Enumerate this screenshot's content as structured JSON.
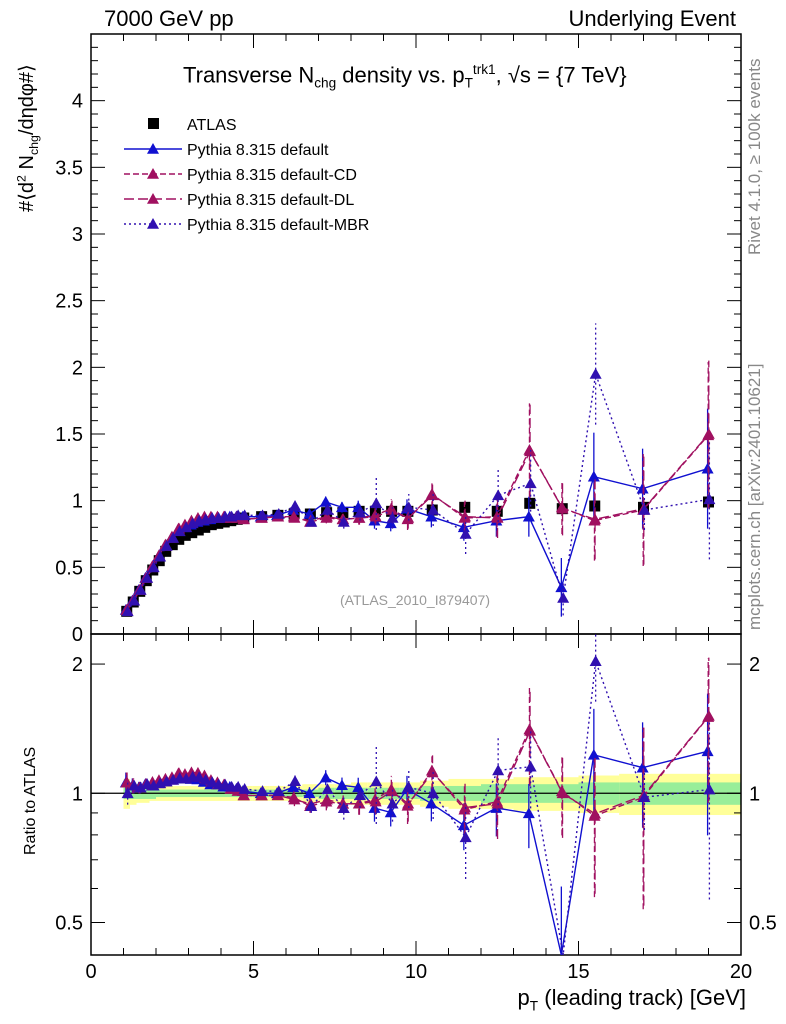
{
  "header": {
    "left": "7000 GeV pp",
    "right": "Underlying Event"
  },
  "side_labels": {
    "rivet": "Rivet 4.1.0, ≥ 100k events",
    "mcplots": "mcplots.cern.ch [arXiv:2401.10621]"
  },
  "title": {
    "part1": "Transverse N",
    "sub1": "chg",
    "part2": " density vs. p",
    "sub2": "T",
    "sup2": "trk1",
    "part3": ", √s = {7 TeV}"
  },
  "ylabel_main": {
    "part1": "#⟨d",
    "sup1": "2",
    "part2": " N",
    "sub2": "chg",
    "part3": "/dηdφ#⟩"
  },
  "ylabel_ratio": "Ratio to ATLAS",
  "xlabel": {
    "part1": "p",
    "sub1": "T",
    "part2": " (leading track) [GeV]"
  },
  "watermark": "(ATLAS_2010_I879407)",
  "chart_data": {
    "type": "scatter",
    "main": {
      "xlim": [
        0,
        20
      ],
      "ylim": [
        0,
        4.5
      ],
      "yticks": [
        0,
        0.5,
        1,
        1.5,
        2,
        2.5,
        3,
        3.5,
        4
      ],
      "ytick_labels": [
        "0",
        "0.5",
        "1",
        "1.5",
        "2",
        "2.5",
        "3",
        "3.5",
        "4"
      ]
    },
    "ratio": {
      "ylim": [
        0.42,
        2.35
      ],
      "yticks": [
        0.5,
        1,
        2
      ],
      "ytick_labels": [
        "0.5",
        "1",
        "2"
      ]
    },
    "xticks": [
      0,
      5,
      10,
      15,
      20
    ],
    "xtick_labels": [
      "0",
      "5",
      "10",
      "15",
      "20"
    ],
    "x": [
      1.1,
      1.3,
      1.5,
      1.7,
      1.9,
      2.1,
      2.3,
      2.5,
      2.7,
      2.9,
      3.1,
      3.3,
      3.5,
      3.7,
      3.9,
      4.1,
      4.3,
      4.5,
      4.7,
      5.25,
      5.75,
      6.25,
      6.75,
      7.25,
      7.75,
      8.25,
      8.75,
      9.25,
      9.75,
      10.5,
      11.5,
      12.5,
      13.5,
      14.5,
      15.5,
      17,
      19
    ],
    "ref": {
      "name": "ATLAS",
      "color": "#000000",
      "values": [
        0.17,
        0.24,
        0.32,
        0.4,
        0.48,
        0.55,
        0.62,
        0.67,
        0.71,
        0.74,
        0.76,
        0.78,
        0.8,
        0.82,
        0.83,
        0.84,
        0.85,
        0.86,
        0.87,
        0.88,
        0.89,
        0.9,
        0.9,
        0.91,
        0.91,
        0.92,
        0.92,
        0.92,
        0.92,
        0.93,
        0.95,
        0.92,
        0.98,
        0.94,
        0.96,
        0.95,
        0.99
      ],
      "band_inner": [
        0.97,
        0.97,
        0.97,
        0.97,
        0.97,
        0.98,
        0.98,
        0.98,
        0.98,
        0.98,
        0.98,
        0.98,
        0.98,
        0.98,
        0.98,
        0.98,
        0.98,
        0.98,
        0.98,
        0.98,
        0.98,
        0.98,
        0.98,
        0.97,
        0.97,
        0.97,
        0.97,
        0.97,
        0.97,
        0.96,
        0.96,
        0.95,
        0.95,
        0.95,
        0.94,
        0.94,
        0.94
      ],
      "band_outer": [
        0.92,
        0.94,
        0.95,
        0.95,
        0.96,
        0.96,
        0.96,
        0.96,
        0.96,
        0.96,
        0.96,
        0.96,
        0.96,
        0.96,
        0.96,
        0.96,
        0.96,
        0.96,
        0.96,
        0.96,
        0.96,
        0.96,
        0.95,
        0.95,
        0.95,
        0.94,
        0.94,
        0.94,
        0.94,
        0.93,
        0.92,
        0.92,
        0.91,
        0.91,
        0.9,
        0.89,
        0.89
      ]
    },
    "series": [
      {
        "name": "Pythia 8.315 default",
        "color": "#1010d0",
        "dash": "",
        "values": [
          0.18,
          0.25,
          0.33,
          0.42,
          0.5,
          0.58,
          0.66,
          0.72,
          0.78,
          0.8,
          0.82,
          0.84,
          0.85,
          0.86,
          0.87,
          0.87,
          0.88,
          0.88,
          0.88,
          0.88,
          0.89,
          0.93,
          0.9,
          0.99,
          0.95,
          0.95,
          0.85,
          0.83,
          0.94,
          0.88,
          0.8,
          0.85,
          0.88,
          0.35,
          1.18,
          1.09,
          1.24
        ],
        "errors": [
          0.01,
          0.01,
          0.01,
          0.01,
          0.01,
          0.01,
          0.01,
          0.01,
          0.01,
          0.01,
          0.01,
          0.01,
          0.01,
          0.01,
          0.01,
          0.01,
          0.01,
          0.01,
          0.01,
          0.02,
          0.02,
          0.03,
          0.03,
          0.04,
          0.04,
          0.05,
          0.06,
          0.06,
          0.07,
          0.08,
          0.1,
          0.12,
          0.15,
          0.22,
          0.33,
          0.3,
          0.45
        ]
      },
      {
        "name": "Pythia 8.315 default-CD",
        "color": "#a01060",
        "dash": "6,3",
        "values": [
          0.18,
          0.25,
          0.33,
          0.42,
          0.51,
          0.59,
          0.67,
          0.73,
          0.79,
          0.82,
          0.85,
          0.87,
          0.88,
          0.88,
          0.88,
          0.88,
          0.87,
          0.88,
          0.86,
          0.87,
          0.88,
          0.88,
          0.84,
          0.87,
          0.86,
          0.87,
          0.89,
          0.94,
          0.86,
          1.05,
          0.87,
          0.88,
          1.38,
          0.95,
          0.85,
          0.93,
          1.49
        ],
        "errors": [
          0.01,
          0.01,
          0.01,
          0.01,
          0.01,
          0.01,
          0.01,
          0.01,
          0.01,
          0.01,
          0.01,
          0.01,
          0.01,
          0.01,
          0.01,
          0.01,
          0.01,
          0.01,
          0.01,
          0.02,
          0.02,
          0.03,
          0.03,
          0.04,
          0.04,
          0.05,
          0.06,
          0.07,
          0.08,
          0.1,
          0.12,
          0.15,
          0.35,
          0.2,
          0.3,
          0.42,
          0.55
        ]
      },
      {
        "name": "Pythia 8.315 default-DL",
        "color": "#a01060",
        "dash": "10,4",
        "values": [
          0.18,
          0.25,
          0.33,
          0.42,
          0.5,
          0.58,
          0.66,
          0.72,
          0.79,
          0.81,
          0.84,
          0.86,
          0.87,
          0.87,
          0.87,
          0.88,
          0.87,
          0.87,
          0.86,
          0.87,
          0.88,
          0.87,
          0.85,
          0.88,
          0.86,
          0.87,
          0.88,
          0.93,
          0.87,
          1.04,
          0.88,
          0.87,
          1.37,
          0.94,
          0.86,
          0.94,
          1.5
        ],
        "errors": [
          0.01,
          0.01,
          0.01,
          0.01,
          0.01,
          0.01,
          0.01,
          0.01,
          0.01,
          0.01,
          0.01,
          0.01,
          0.01,
          0.01,
          0.01,
          0.01,
          0.01,
          0.01,
          0.01,
          0.02,
          0.02,
          0.03,
          0.03,
          0.04,
          0.04,
          0.05,
          0.06,
          0.07,
          0.08,
          0.1,
          0.12,
          0.15,
          0.35,
          0.2,
          0.3,
          0.42,
          0.55
        ]
      },
      {
        "name": "Pythia 8.315 default-MBR",
        "color": "#3010b0",
        "dash": "2,3",
        "values": [
          0.17,
          0.25,
          0.33,
          0.42,
          0.5,
          0.58,
          0.66,
          0.72,
          0.77,
          0.8,
          0.83,
          0.85,
          0.86,
          0.87,
          0.87,
          0.88,
          0.88,
          0.89,
          0.89,
          0.89,
          0.9,
          0.96,
          0.84,
          0.93,
          0.84,
          0.91,
          0.98,
          0.87,
          0.95,
          0.93,
          0.75,
          1.04,
          1.13,
          0.27,
          1.95,
          0.93,
          1.01
        ],
        "errors": [
          0.01,
          0.01,
          0.01,
          0.01,
          0.01,
          0.01,
          0.01,
          0.01,
          0.01,
          0.01,
          0.01,
          0.01,
          0.01,
          0.01,
          0.01,
          0.01,
          0.01,
          0.01,
          0.01,
          0.02,
          0.02,
          0.03,
          0.03,
          0.04,
          0.05,
          0.06,
          0.2,
          0.08,
          0.1,
          0.12,
          0.15,
          0.2,
          0.25,
          0.13,
          0.38,
          0.15,
          0.45
        ]
      }
    ]
  }
}
